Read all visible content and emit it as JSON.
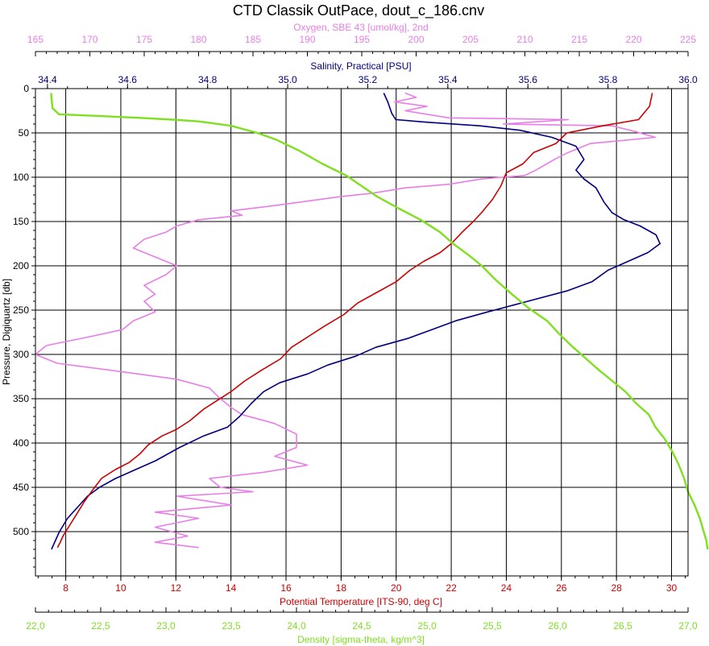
{
  "chart_data": {
    "type": "line",
    "title": "CTD Classik OutPace, dout_c_186.cnv",
    "grid": true,
    "y_axis": {
      "label": "Pressure, Digiquartz [db]",
      "range": [
        0,
        550
      ],
      "inverted": true,
      "ticks": [
        "0",
        "50",
        "100",
        "150",
        "200",
        "250",
        "300",
        "350",
        "400",
        "450",
        "500"
      ]
    },
    "axes": {
      "oxygen": {
        "label": "Oxygen, SBE 43 [umol/kg], 2nd",
        "range": [
          165,
          225
        ],
        "ticks": [
          "165",
          "170",
          "175",
          "180",
          "185",
          "190",
          "195",
          "200",
          "205",
          "210",
          "215",
          "220",
          "225"
        ],
        "color": "#e87de8",
        "position": "top"
      },
      "salinity": {
        "label": "Salinity, Practical [PSU]",
        "range": [
          34.37,
          36.0
        ],
        "ticks": [
          "34.4",
          "34.6",
          "34.8",
          "35.0",
          "35.2",
          "35.4",
          "35.6",
          "35.8",
          "36.0"
        ],
        "color": "#000080",
        "position": "top"
      },
      "temperature": {
        "label": "Potential Temperature [ITS-90, deg C]",
        "range": [
          6.9,
          30.6
        ],
        "ticks": [
          "8",
          "10",
          "12",
          "14",
          "16",
          "18",
          "20",
          "22",
          "24",
          "26",
          "28",
          "30"
        ],
        "color": "#cc0000",
        "position": "bottom"
      },
      "density": {
        "label": "Density [sigma-theta, kg/m^3]",
        "range": [
          22.0,
          27.0
        ],
        "ticks": [
          "22,0",
          "22,5",
          "23,0",
          "23,5",
          "24,0",
          "24,5",
          "25,0",
          "25,5",
          "26,0",
          "26,5",
          "27,0"
        ],
        "color": "#7fe020",
        "position": "bottom"
      }
    },
    "series": [
      {
        "axis": "oxygen",
        "color": "#e87de8",
        "points": [
          [
            199,
            5
          ],
          [
            200,
            10
          ],
          [
            198,
            15
          ],
          [
            201,
            20
          ],
          [
            199,
            25
          ],
          [
            203,
            33
          ],
          [
            214,
            35
          ],
          [
            208,
            40
          ],
          [
            218,
            42
          ],
          [
            220,
            48
          ],
          [
            222,
            55
          ],
          [
            216,
            62
          ],
          [
            214,
            72
          ],
          [
            213,
            78
          ],
          [
            212,
            85
          ],
          [
            211,
            92
          ],
          [
            210,
            98
          ],
          [
            206,
            102
          ],
          [
            203,
            108
          ],
          [
            199,
            112
          ],
          [
            196,
            118
          ],
          [
            193,
            122
          ],
          [
            190,
            127
          ],
          [
            187,
            132
          ],
          [
            183,
            138
          ],
          [
            184,
            143
          ],
          [
            180,
            148
          ],
          [
            178,
            155
          ],
          [
            177,
            162
          ],
          [
            175,
            170
          ],
          [
            174,
            180
          ],
          [
            176,
            190
          ],
          [
            178,
            200
          ],
          [
            177,
            210
          ],
          [
            175,
            222
          ],
          [
            176,
            232
          ],
          [
            175,
            240
          ],
          [
            176,
            252
          ],
          [
            174,
            262
          ],
          [
            173,
            272
          ],
          [
            170,
            280
          ],
          [
            166,
            290
          ],
          [
            165,
            300
          ],
          [
            167,
            310
          ],
          [
            172,
            318
          ],
          [
            178,
            328
          ],
          [
            181,
            338
          ],
          [
            182,
            350
          ],
          [
            183,
            360
          ],
          [
            184,
            368
          ],
          [
            187,
            378
          ],
          [
            189,
            390
          ],
          [
            189,
            405
          ],
          [
            187,
            415
          ],
          [
            190,
            425
          ],
          [
            186,
            433
          ],
          [
            181,
            440
          ],
          [
            182,
            450
          ],
          [
            185,
            455
          ],
          [
            178,
            460
          ],
          [
            183,
            470
          ],
          [
            176,
            478
          ],
          [
            180,
            485
          ],
          [
            176,
            495
          ],
          [
            179,
            505
          ],
          [
            176,
            512
          ],
          [
            180,
            518
          ]
        ]
      },
      {
        "axis": "salinity",
        "color": "#000080",
        "points": [
          [
            35.24,
            5
          ],
          [
            35.25,
            15
          ],
          [
            35.26,
            28
          ],
          [
            35.27,
            35
          ],
          [
            35.35,
            38
          ],
          [
            35.48,
            42
          ],
          [
            35.58,
            47
          ],
          [
            35.66,
            55
          ],
          [
            35.72,
            65
          ],
          [
            35.74,
            80
          ],
          [
            35.72,
            92
          ],
          [
            35.74,
            102
          ],
          [
            35.77,
            112
          ],
          [
            35.78,
            120
          ],
          [
            35.79,
            128
          ],
          [
            35.81,
            140
          ],
          [
            35.84,
            148
          ],
          [
            35.88,
            155
          ],
          [
            35.92,
            165
          ],
          [
            35.93,
            175
          ],
          [
            35.9,
            185
          ],
          [
            35.85,
            195
          ],
          [
            35.8,
            205
          ],
          [
            35.76,
            218
          ],
          [
            35.7,
            228
          ],
          [
            35.6,
            240
          ],
          [
            35.5,
            252
          ],
          [
            35.42,
            262
          ],
          [
            35.36,
            272
          ],
          [
            35.3,
            282
          ],
          [
            35.22,
            292
          ],
          [
            35.17,
            302
          ],
          [
            35.1,
            312
          ],
          [
            35.05,
            322
          ],
          [
            34.98,
            332
          ],
          [
            34.94,
            342
          ],
          [
            34.91,
            355
          ],
          [
            34.88,
            370
          ],
          [
            34.85,
            382
          ],
          [
            34.79,
            392
          ],
          [
            34.73,
            405
          ],
          [
            34.67,
            420
          ],
          [
            34.62,
            430
          ],
          [
            34.57,
            440
          ],
          [
            34.53,
            450
          ],
          [
            34.5,
            460
          ],
          [
            34.48,
            470
          ],
          [
            34.45,
            485
          ],
          [
            34.43,
            500
          ],
          [
            34.42,
            510
          ],
          [
            34.41,
            520
          ]
        ]
      },
      {
        "axis": "temperature",
        "color": "#cc0000",
        "points": [
          [
            29.3,
            5
          ],
          [
            29.2,
            20
          ],
          [
            28.8,
            35
          ],
          [
            27.5,
            42
          ],
          [
            26.2,
            50
          ],
          [
            25.8,
            62
          ],
          [
            25.0,
            72
          ],
          [
            24.6,
            85
          ],
          [
            24.0,
            95
          ],
          [
            23.8,
            110
          ],
          [
            23.5,
            125
          ],
          [
            23.1,
            140
          ],
          [
            22.8,
            150
          ],
          [
            22.4,
            162
          ],
          [
            22.0,
            175
          ],
          [
            21.6,
            185
          ],
          [
            21.0,
            195
          ],
          [
            20.5,
            205
          ],
          [
            20.0,
            218
          ],
          [
            19.3,
            230
          ],
          [
            18.6,
            242
          ],
          [
            18.1,
            255
          ],
          [
            17.4,
            268
          ],
          [
            16.8,
            280
          ],
          [
            16.2,
            292
          ],
          [
            15.8,
            305
          ],
          [
            15.1,
            318
          ],
          [
            14.5,
            330
          ],
          [
            14.0,
            342
          ],
          [
            13.5,
            352
          ],
          [
            13.0,
            362
          ],
          [
            12.5,
            375
          ],
          [
            12.0,
            385
          ],
          [
            11.5,
            392
          ],
          [
            11.0,
            402
          ],
          [
            10.7,
            412
          ],
          [
            10.3,
            422
          ],
          [
            9.8,
            430
          ],
          [
            9.3,
            440
          ],
          [
            9.0,
            452
          ],
          [
            8.7,
            465
          ],
          [
            8.4,
            480
          ],
          [
            8.1,
            495
          ],
          [
            7.9,
            505
          ],
          [
            7.8,
            512
          ],
          [
            7.7,
            518
          ]
        ]
      },
      {
        "axis": "density",
        "color": "#7fe020",
        "points": [
          [
            22.12,
            5
          ],
          [
            22.13,
            22
          ],
          [
            22.18,
            29
          ],
          [
            22.5,
            31
          ],
          [
            22.8,
            33
          ],
          [
            23.05,
            35
          ],
          [
            23.25,
            37
          ],
          [
            23.5,
            42
          ],
          [
            23.7,
            50
          ],
          [
            23.85,
            58
          ],
          [
            24.02,
            70
          ],
          [
            24.2,
            85
          ],
          [
            24.38,
            98
          ],
          [
            24.52,
            112
          ],
          [
            24.62,
            122
          ],
          [
            24.78,
            135
          ],
          [
            24.95,
            148
          ],
          [
            25.1,
            162
          ],
          [
            25.2,
            175
          ],
          [
            25.32,
            188
          ],
          [
            25.42,
            200
          ],
          [
            25.52,
            215
          ],
          [
            25.65,
            232
          ],
          [
            25.78,
            248
          ],
          [
            25.92,
            262
          ],
          [
            26.02,
            278
          ],
          [
            26.12,
            292
          ],
          [
            26.22,
            305
          ],
          [
            26.32,
            318
          ],
          [
            26.42,
            330
          ],
          [
            26.52,
            342
          ],
          [
            26.6,
            355
          ],
          [
            26.7,
            368
          ],
          [
            26.75,
            382
          ],
          [
            26.82,
            395
          ],
          [
            26.88,
            410
          ],
          [
            26.93,
            425
          ],
          [
            26.97,
            440
          ],
          [
            27.0,
            455
          ],
          [
            27.05,
            470
          ],
          [
            27.09,
            485
          ],
          [
            27.12,
            500
          ],
          [
            27.14,
            510
          ],
          [
            27.15,
            520
          ]
        ]
      }
    ]
  }
}
